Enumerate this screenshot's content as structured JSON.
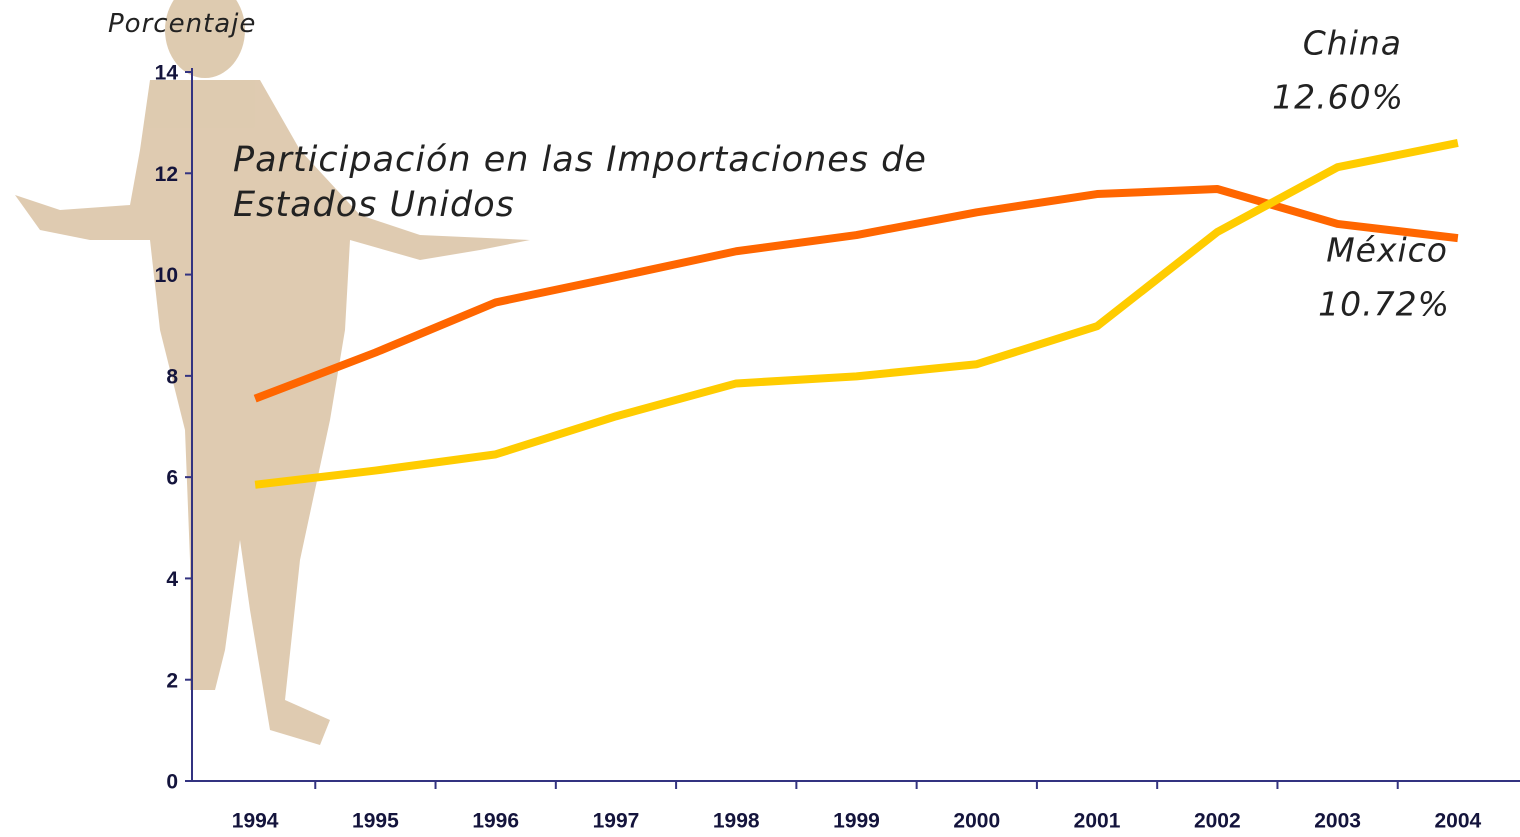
{
  "chart_data": {
    "type": "line",
    "title": "Participación en las Importaciones de Estados Unidos",
    "y_label": "Porcentaje",
    "categories": [
      "1994",
      "1995",
      "1996",
      "1997",
      "1998",
      "1999",
      "2000",
      "2001",
      "2002",
      "2003",
      "2004"
    ],
    "series": [
      {
        "name": "México",
        "color": "#ff6600",
        "values": [
          7.55,
          8.46,
          9.45,
          9.95,
          10.46,
          10.78,
          11.23,
          11.59,
          11.69,
          11.0,
          10.72
        ]
      },
      {
        "name": "China",
        "color": "#ffcc00",
        "values": [
          5.85,
          6.13,
          6.45,
          7.2,
          7.85,
          7.99,
          8.23,
          8.98,
          10.84,
          12.12,
          12.6
        ]
      }
    ],
    "annotations": [
      "10.72%",
      "12.60%"
    ],
    "ylim": [
      0,
      14
    ],
    "yticks": [
      0,
      2,
      4,
      6,
      8,
      10,
      12,
      14
    ]
  }
}
